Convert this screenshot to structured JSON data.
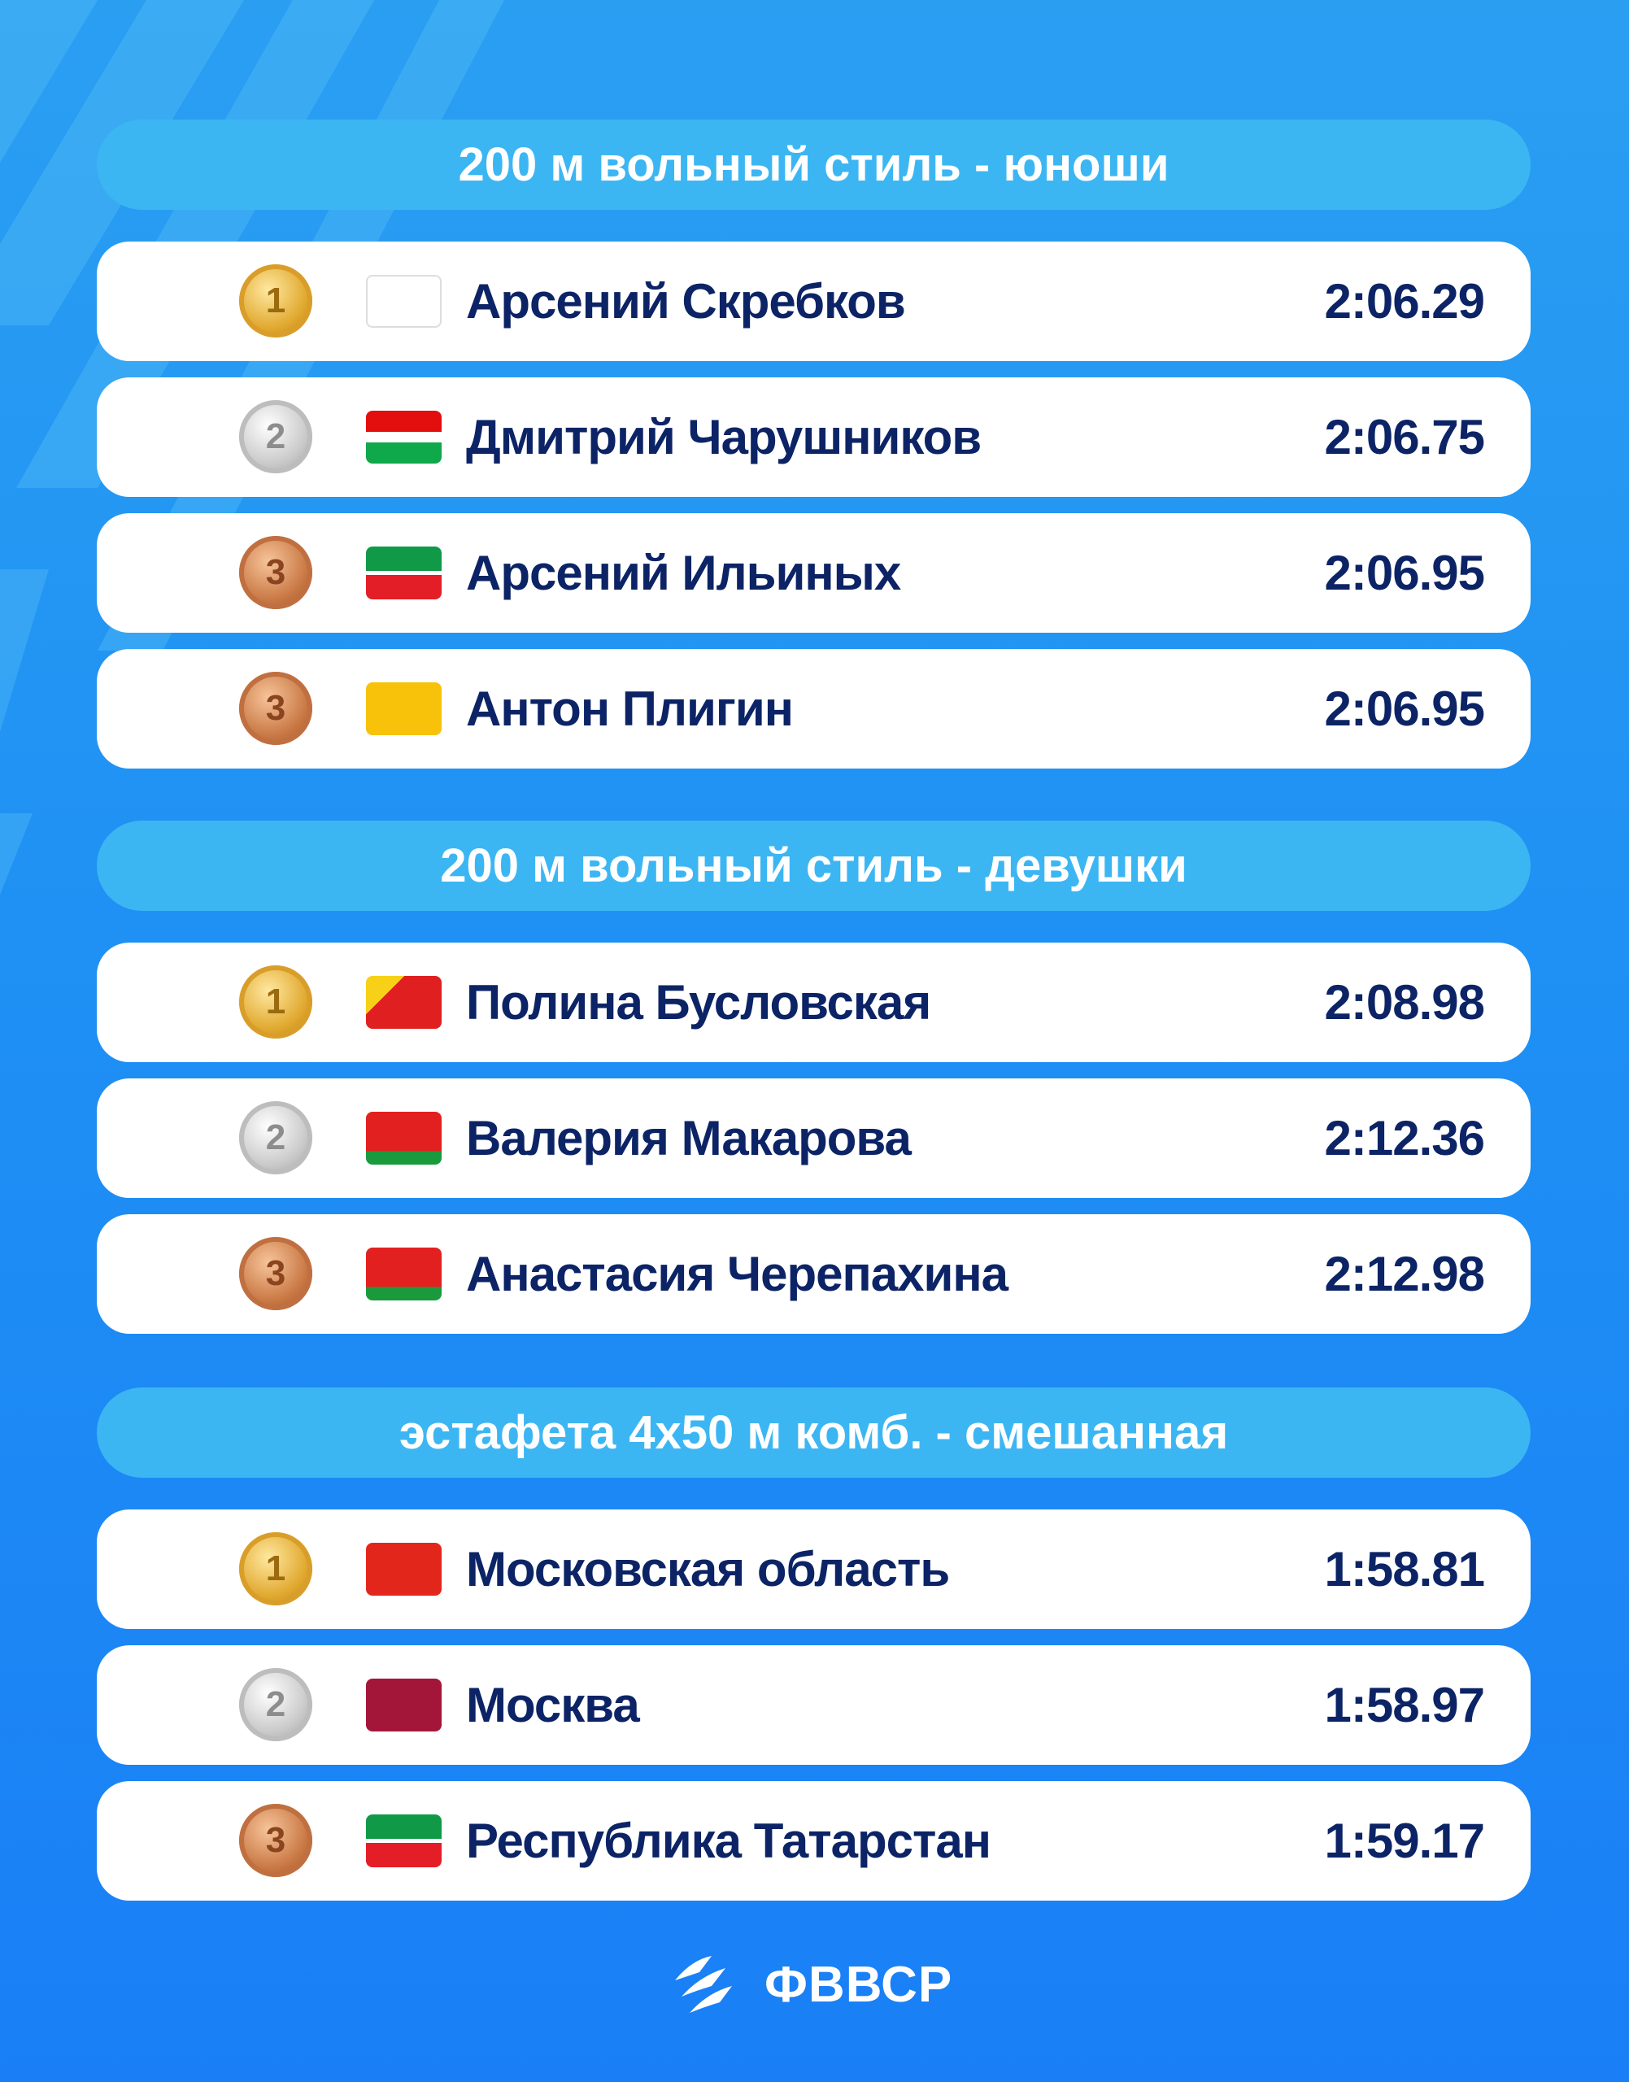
{
  "colors": {
    "background": "#1e8ff4",
    "section_header": "#3cb6f3",
    "text": "#0c2466",
    "card": "#ffffff"
  },
  "sections": [
    {
      "title": "200 м вольный стиль - юноши",
      "results": [
        {
          "place": "1",
          "medal": "gold",
          "flag": "nizhny-novgorod-oblast",
          "name": "Арсений Скребков",
          "time": "2:06.29"
        },
        {
          "place": "2",
          "medal": "silver",
          "flag": "kaluga-oblast",
          "name": "Дмитрий Чарушников",
          "time": "2:06.75"
        },
        {
          "place": "3",
          "medal": "bronze",
          "flag": "tatarstan",
          "name": "Арсений Ильиных",
          "time": "2:06.95"
        },
        {
          "place": "3",
          "medal": "bronze",
          "flag": "yaroslavl-oblast",
          "name": "Антон Плигин",
          "time": "2:06.95"
        }
      ]
    },
    {
      "title": "200 м вольный стиль - девушки",
      "results": [
        {
          "place": "1",
          "medal": "gold",
          "flag": "voronezh-oblast",
          "name": "Полина Бусловская",
          "time": "2:08.98"
        },
        {
          "place": "2",
          "medal": "silver",
          "flag": "lipetsk-oblast",
          "name": "Валерия Макарова",
          "time": "2:12.36"
        },
        {
          "place": "3",
          "medal": "bronze",
          "flag": "lipetsk-oblast",
          "name": "Анастасия Черепахина",
          "time": "2:12.98"
        }
      ]
    },
    {
      "title": "эстафета 4x50 м комб. - смешанная",
      "results": [
        {
          "place": "1",
          "medal": "gold",
          "flag": "moscow-oblast",
          "name": "Московская область",
          "time": "1:58.81"
        },
        {
          "place": "2",
          "medal": "silver",
          "flag": "moscow",
          "name": "Москва",
          "time": "1:58.97"
        },
        {
          "place": "3",
          "medal": "bronze",
          "flag": "tatarstan",
          "name": "Республика Татарстан",
          "time": "1:59.17"
        }
      ]
    }
  ],
  "footer": {
    "logo_text": "ФВВСР",
    "icon": "swim-waves-logo-icon"
  }
}
